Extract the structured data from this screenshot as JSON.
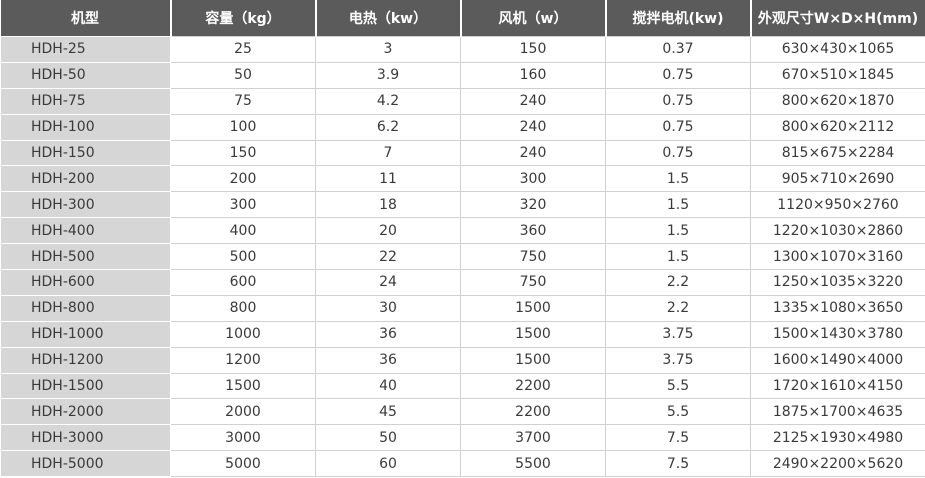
{
  "table": {
    "header": [
      "机型",
      "容量（kg）",
      "电热（kw）",
      "风机（w）",
      "搅拌电机(kw)",
      "外观尺寸W×D×H(mm)"
    ],
    "rows": [
      [
        "HDH-25",
        25,
        3,
        150,
        0.37,
        "630×430×1065"
      ],
      [
        "HDH-50",
        50,
        3.9,
        160,
        0.75,
        "670×510×1845"
      ],
      [
        "HDH-75",
        75,
        4.2,
        240,
        0.75,
        "800×620×1870"
      ],
      [
        "HDH-100",
        100,
        6.2,
        240,
        0.75,
        "800×620×2112"
      ],
      [
        "HDH-150",
        150,
        7,
        240,
        0.75,
        "815×675×2284"
      ],
      [
        "HDH-200",
        200,
        11,
        300,
        1.5,
        "905×710×2690"
      ],
      [
        "HDH-300",
        300,
        18,
        320,
        1.5,
        "1120×950×2760"
      ],
      [
        "HDH-400",
        400,
        20,
        360,
        1.5,
        "1220×1030×2860"
      ],
      [
        "HDH-500",
        500,
        22,
        750,
        1.5,
        "1300×1070×3160"
      ],
      [
        "HDH-600",
        600,
        24,
        750,
        2.2,
        "1250×1035×3220"
      ],
      [
        "HDH-800",
        800,
        30,
        1500,
        2.2,
        "1335×1080×3650"
      ],
      [
        "HDH-1000",
        1000,
        36,
        1500,
        3.75,
        "1500×1430×3780"
      ],
      [
        "HDH-1200",
        1200,
        36,
        1500,
        3.75,
        "1600×1490×4000"
      ],
      [
        "HDH-1500",
        1500,
        40,
        2200,
        5.5,
        "1720×1610×4150"
      ],
      [
        "HDH-2000",
        2000,
        45,
        2200,
        5.5,
        "1875×1700×4635"
      ],
      [
        "HDH-3000",
        3000,
        50,
        3700,
        7.5,
        "2125×1930×4980"
      ],
      [
        "HDH-5000",
        5000,
        60,
        5500,
        7.5,
        "2490×2200×5620"
      ]
    ]
  }
}
